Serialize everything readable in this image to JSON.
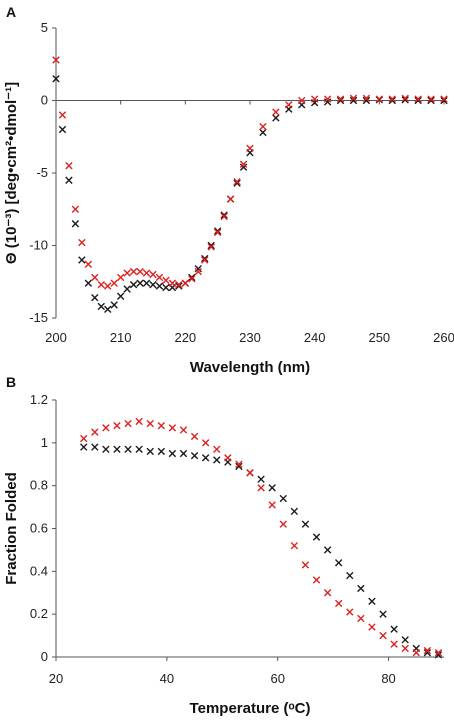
{
  "chart_data": [
    {
      "panel_label": "A",
      "type": "scatter",
      "xlabel": "Wavelength (nm)",
      "ylabel": "Θ (10⁻³) [deg•cm²•dmol⁻¹]",
      "xlim": [
        200,
        260
      ],
      "ylim": [
        -15,
        5
      ],
      "xticks": [
        "200",
        "210",
        "220",
        "230",
        "240",
        "250",
        "260"
      ],
      "yticks": [
        "-15",
        "-10",
        "-5",
        "0",
        "5"
      ],
      "grid": false,
      "legend": "none",
      "series": [
        {
          "marker": "x",
          "color": "#1a1a1a",
          "x": [
            200,
            201,
            202,
            203,
            204,
            205,
            206,
            207,
            208,
            209,
            210,
            211,
            212,
            213,
            214,
            215,
            216,
            217,
            218,
            219,
            220,
            221,
            222,
            223,
            224,
            225,
            226,
            227,
            228,
            229,
            230,
            232,
            234,
            236,
            238,
            240,
            242,
            244,
            246,
            248,
            250,
            252,
            254,
            256,
            258,
            260
          ],
          "y": [
            1.5,
            -2.0,
            -5.5,
            -8.5,
            -11.0,
            -12.6,
            -13.6,
            -14.2,
            -14.4,
            -14.1,
            -13.5,
            -13.0,
            -12.7,
            -12.6,
            -12.6,
            -12.7,
            -12.8,
            -12.9,
            -12.9,
            -12.8,
            -12.6,
            -12.2,
            -11.6,
            -10.9,
            -10.0,
            -9.0,
            -7.9,
            -6.8,
            -5.7,
            -4.6,
            -3.6,
            -2.2,
            -1.2,
            -0.6,
            -0.3,
            -0.15,
            -0.1,
            0.0,
            0.0,
            0.0,
            0.05,
            0.0,
            0.05,
            0.0,
            0.0,
            0.0
          ]
        },
        {
          "marker": "x",
          "color": "#e02020",
          "x": [
            200,
            201,
            202,
            203,
            204,
            205,
            206,
            207,
            208,
            209,
            210,
            211,
            212,
            213,
            214,
            215,
            216,
            217,
            218,
            219,
            220,
            221,
            222,
            223,
            224,
            225,
            226,
            227,
            228,
            229,
            230,
            232,
            234,
            236,
            238,
            240,
            242,
            244,
            246,
            248,
            250,
            252,
            254,
            256,
            258,
            260
          ],
          "y": [
            2.8,
            -1.0,
            -4.5,
            -7.5,
            -9.8,
            -11.3,
            -12.2,
            -12.7,
            -12.8,
            -12.6,
            -12.2,
            -11.9,
            -11.8,
            -11.8,
            -11.9,
            -12.0,
            -12.2,
            -12.4,
            -12.6,
            -12.7,
            -12.6,
            -12.3,
            -11.8,
            -11.0,
            -10.1,
            -9.1,
            -8.0,
            -6.8,
            -5.6,
            -4.4,
            -3.3,
            -1.8,
            -0.8,
            -0.3,
            0.0,
            0.1,
            0.1,
            0.1,
            0.15,
            0.15,
            0.1,
            0.1,
            0.15,
            0.1,
            0.1,
            0.1
          ]
        }
      ]
    },
    {
      "panel_label": "B",
      "type": "scatter",
      "xlabel": "Temperature (ᵒC)",
      "ylabel": "Fraction Folded",
      "xlim": [
        20,
        90
      ],
      "ylim": [
        0,
        1.2
      ],
      "xticks": [
        "20",
        "40",
        "60",
        "80"
      ],
      "yticks": [
        "0",
        "0.2",
        "0.4",
        "0.6",
        "0.8",
        "1",
        "1.2"
      ],
      "grid": false,
      "legend": "none",
      "series": [
        {
          "marker": "x",
          "color": "#1a1a1a",
          "x": [
            25,
            27,
            29,
            31,
            33,
            35,
            37,
            39,
            41,
            43,
            45,
            47,
            49,
            51,
            53,
            55,
            57,
            59,
            61,
            63,
            65,
            67,
            69,
            71,
            73,
            75,
            77,
            79,
            81,
            83,
            85,
            87,
            89
          ],
          "y": [
            0.98,
            0.98,
            0.97,
            0.97,
            0.97,
            0.97,
            0.96,
            0.96,
            0.95,
            0.95,
            0.94,
            0.93,
            0.92,
            0.91,
            0.89,
            0.86,
            0.83,
            0.79,
            0.74,
            0.68,
            0.62,
            0.56,
            0.5,
            0.44,
            0.38,
            0.32,
            0.26,
            0.2,
            0.13,
            0.08,
            0.04,
            0.02,
            0.01
          ]
        },
        {
          "marker": "x",
          "color": "#e02020",
          "x": [
            25,
            27,
            29,
            31,
            33,
            35,
            37,
            39,
            41,
            43,
            45,
            47,
            49,
            51,
            53,
            55,
            57,
            59,
            61,
            63,
            65,
            67,
            69,
            71,
            73,
            75,
            77,
            79,
            81,
            83,
            85,
            87,
            89
          ],
          "y": [
            1.02,
            1.05,
            1.07,
            1.08,
            1.09,
            1.1,
            1.09,
            1.08,
            1.07,
            1.06,
            1.03,
            1.0,
            0.97,
            0.93,
            0.9,
            0.86,
            0.79,
            0.71,
            0.62,
            0.52,
            0.43,
            0.36,
            0.3,
            0.25,
            0.21,
            0.18,
            0.14,
            0.1,
            0.06,
            0.04,
            0.02,
            0.03,
            0.02
          ]
        }
      ]
    }
  ]
}
